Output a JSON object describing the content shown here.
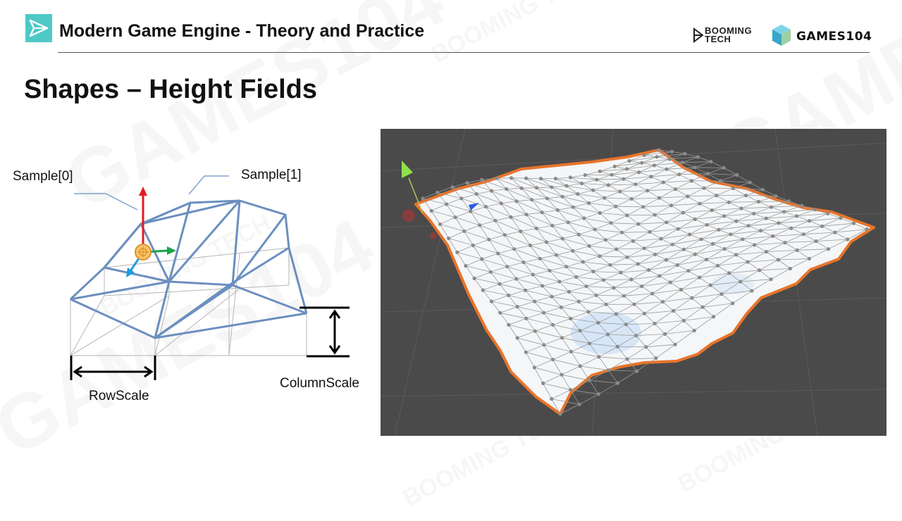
{
  "header": {
    "course_title": "Modern Game Engine - Theory and Practice",
    "brand_booming_line1": "BOOMING",
    "brand_booming_line2": "TECH",
    "brand_games": "GAMES104"
  },
  "slide": {
    "title": "Shapes – Height Fields"
  },
  "diagram": {
    "label_sample0": "Sample[0]",
    "label_sample1": "Sample[1]",
    "label_rowscale": "RowScale",
    "label_columnscale": "ColumnScale"
  },
  "colors": {
    "mesh_blue": "#6b8fbf",
    "axis_red": "#e31b23",
    "axis_green": "#1aa34a",
    "axis_blue": "#1e9be0",
    "pivot_orange": "#f0a53a",
    "terrain_outline": "#e8742a",
    "viewport_bg": "#4a4a4a",
    "accent_teal": "#4ec9c6"
  },
  "watermark_text": [
    "GAMES104",
    "BOOMING TECH"
  ]
}
